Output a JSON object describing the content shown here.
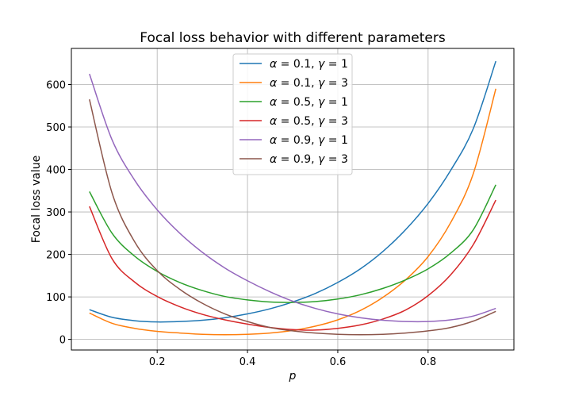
{
  "chart_data": {
    "type": "line",
    "title": "Focal loss behavior with different parameters",
    "xlabel": "p",
    "ylabel": "Focal loss value",
    "xlim": [
      0.01,
      0.99
    ],
    "ylim": [
      -25,
      685
    ],
    "xticks": [
      0.2,
      0.4,
      0.6,
      0.8
    ],
    "xtick_labels": [
      "0.2",
      "0.4",
      "0.6",
      "0.8"
    ],
    "yticks": [
      0,
      100,
      200,
      300,
      400,
      500,
      600
    ],
    "ytick_labels": [
      "0",
      "100",
      "200",
      "300",
      "400",
      "500",
      "600"
    ],
    "grid": true,
    "legend_position": "top-center",
    "x": [
      0.05,
      0.1,
      0.15,
      0.2,
      0.25,
      0.3,
      0.35,
      0.4,
      0.45,
      0.5,
      0.55,
      0.6,
      0.65,
      0.7,
      0.75,
      0.8,
      0.85,
      0.9,
      0.95
    ],
    "series": [
      {
        "name": "α = 0.1, γ = 1",
        "legend": {
          "alpha": "0.1",
          "gamma": "1"
        },
        "color": "#1f77b4",
        "values": [
          70,
          52,
          44,
          41,
          42,
          45,
          51,
          60,
          72,
          88,
          108,
          134,
          166,
          207,
          258,
          320,
          398,
          496,
          655
        ]
      },
      {
        "name": "α = 0.1, γ = 3",
        "legend": {
          "alpha": "0.1",
          "gamma": "3"
        },
        "color": "#ff7f0e",
        "values": [
          62,
          38,
          26,
          19,
          15,
          12,
          11,
          12,
          15,
          21,
          31,
          46,
          68,
          99,
          140,
          195,
          275,
          390,
          590
        ]
      },
      {
        "name": "α = 0.5, γ = 1",
        "legend": {
          "alpha": "0.5",
          "gamma": "1"
        },
        "color": "#2ca02c",
        "values": [
          348,
          250,
          196,
          160,
          134,
          115,
          101,
          93,
          88,
          87,
          89,
          95,
          105,
          120,
          140,
          166,
          203,
          258,
          364
        ]
      },
      {
        "name": "α = 0.5, γ = 3",
        "legend": {
          "alpha": "0.5",
          "gamma": "3"
        },
        "color": "#d62728",
        "values": [
          313,
          190,
          135,
          101,
          77,
          59,
          46,
          36,
          28,
          23,
          22,
          26,
          34,
          48,
          69,
          103,
          152,
          223,
          328
        ]
      },
      {
        "name": "α = 0.9, γ = 1",
        "legend": {
          "alpha": "0.9",
          "gamma": "1"
        },
        "color": "#9467bd",
        "values": [
          625,
          470,
          375,
          305,
          250,
          205,
          168,
          138,
          112,
          90,
          73,
          60,
          51,
          45,
          42,
          42,
          46,
          55,
          73
        ]
      },
      {
        "name": "α = 0.9, γ = 3",
        "legend": {
          "alpha": "0.9",
          "gamma": "3"
        },
        "color": "#8c564b",
        "values": [
          565,
          345,
          230,
          162,
          118,
          85,
          60,
          42,
          28,
          20,
          15,
          12,
          11,
          12,
          15,
          20,
          28,
          43,
          66
        ]
      }
    ]
  }
}
